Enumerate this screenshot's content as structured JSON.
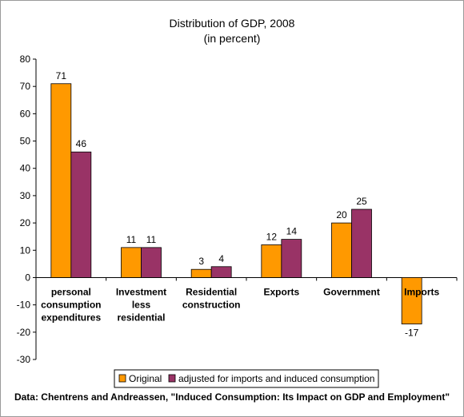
{
  "chart_data": {
    "type": "bar",
    "title": "Distribution of GDP, 2008",
    "subtitle": "(in percent)",
    "categories": [
      "personal consumption expenditures",
      "Investment less residential",
      "Residential construction",
      "Exports",
      "Government",
      "Imports"
    ],
    "category_lines": [
      [
        "personal",
        "consumption",
        "expenditures"
      ],
      [
        "Investment",
        "less",
        "residential"
      ],
      [
        "Residential",
        "construction"
      ],
      [
        "Exports"
      ],
      [
        "Government"
      ],
      [
        "Imports"
      ]
    ],
    "series": [
      {
        "name": "Original",
        "color": "#ff9900",
        "values": [
          71,
          11,
          3,
          12,
          20,
          -17
        ]
      },
      {
        "name": "adjusted for imports and induced consumption",
        "color": "#993366",
        "values": [
          46,
          11,
          4,
          14,
          25,
          null
        ]
      }
    ],
    "ylim": [
      -30,
      80
    ],
    "yticks": [
      -30,
      -20,
      -10,
      0,
      10,
      20,
      30,
      40,
      50,
      60,
      70,
      80
    ],
    "grid": false,
    "legend_position": "bottom",
    "source": "Data: Chentrens and Andreassen, \"Induced Consumption: Its Impact on GDP and Employment\""
  }
}
